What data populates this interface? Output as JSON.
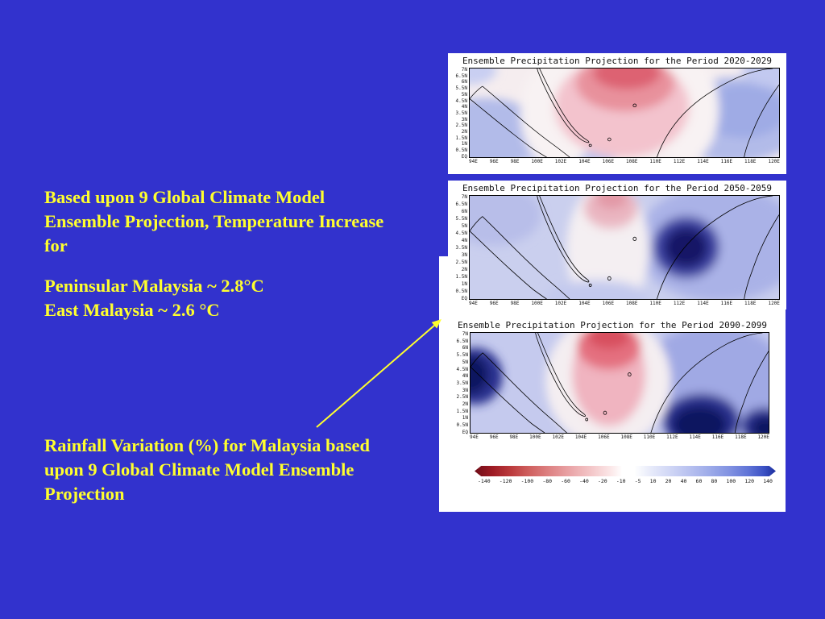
{
  "colors": {
    "background": "#3232cd",
    "text": "#ffff2e",
    "panel": "#ffffff",
    "map_red": "#d84f5f",
    "map_pink": "#eeacb9",
    "map_light_blue": "#c5caee",
    "map_purple": "#9ba4e2",
    "map_navy": "#0e1260",
    "arrow": "#ffff2e"
  },
  "text_blocks": {
    "temperature": {
      "lines": [
        "Based upon 9 Global Climate Model",
        "Ensemble Projection, Temperature Increase",
        "for"
      ]
    },
    "temperature_values": {
      "lines": [
        "Peninsular Malaysia ~ 2.8°C",
        "East Malaysia ~ 2.6 °C"
      ]
    },
    "rainfall": {
      "lines": [
        "Rainfall Variation (%) for Malaysia based",
        "upon 9 Global Climate Model Ensemble",
        "Projection"
      ]
    }
  },
  "figures": [
    {
      "title": "Ensemble Precipitation Projection for the Period 2020-2029",
      "period": "2020-2029"
    },
    {
      "title": "Ensemble Precipitation Projection for the Period 2050-2059",
      "period": "2050-2059"
    },
    {
      "title": "Ensemble Precipitation Projection for the Period 2090-2099",
      "period": "2090-2099"
    }
  ],
  "axes": {
    "lat": [
      "7N",
      "6.5N",
      "6N",
      "5.5N",
      "5N",
      "4.5N",
      "4N",
      "3.5N",
      "3N",
      "2.5N",
      "2N",
      "1.5N",
      "1N",
      "0.5N",
      "EQ"
    ],
    "lon": [
      "94E",
      "96E",
      "98E",
      "100E",
      "102E",
      "104E",
      "106E",
      "108E",
      "110E",
      "112E",
      "114E",
      "116E",
      "118E",
      "120E"
    ]
  },
  "colorbar": {
    "labels": [
      "-140",
      "-120",
      "-100",
      "-80",
      "-60",
      "-40",
      "-20",
      "-10",
      "-5",
      "10",
      "20",
      "40",
      "60",
      "80",
      "100",
      "120",
      "140"
    ]
  },
  "arrow": {
    "description": "yellow arrow pointing from rainfall text toward the map figures"
  }
}
